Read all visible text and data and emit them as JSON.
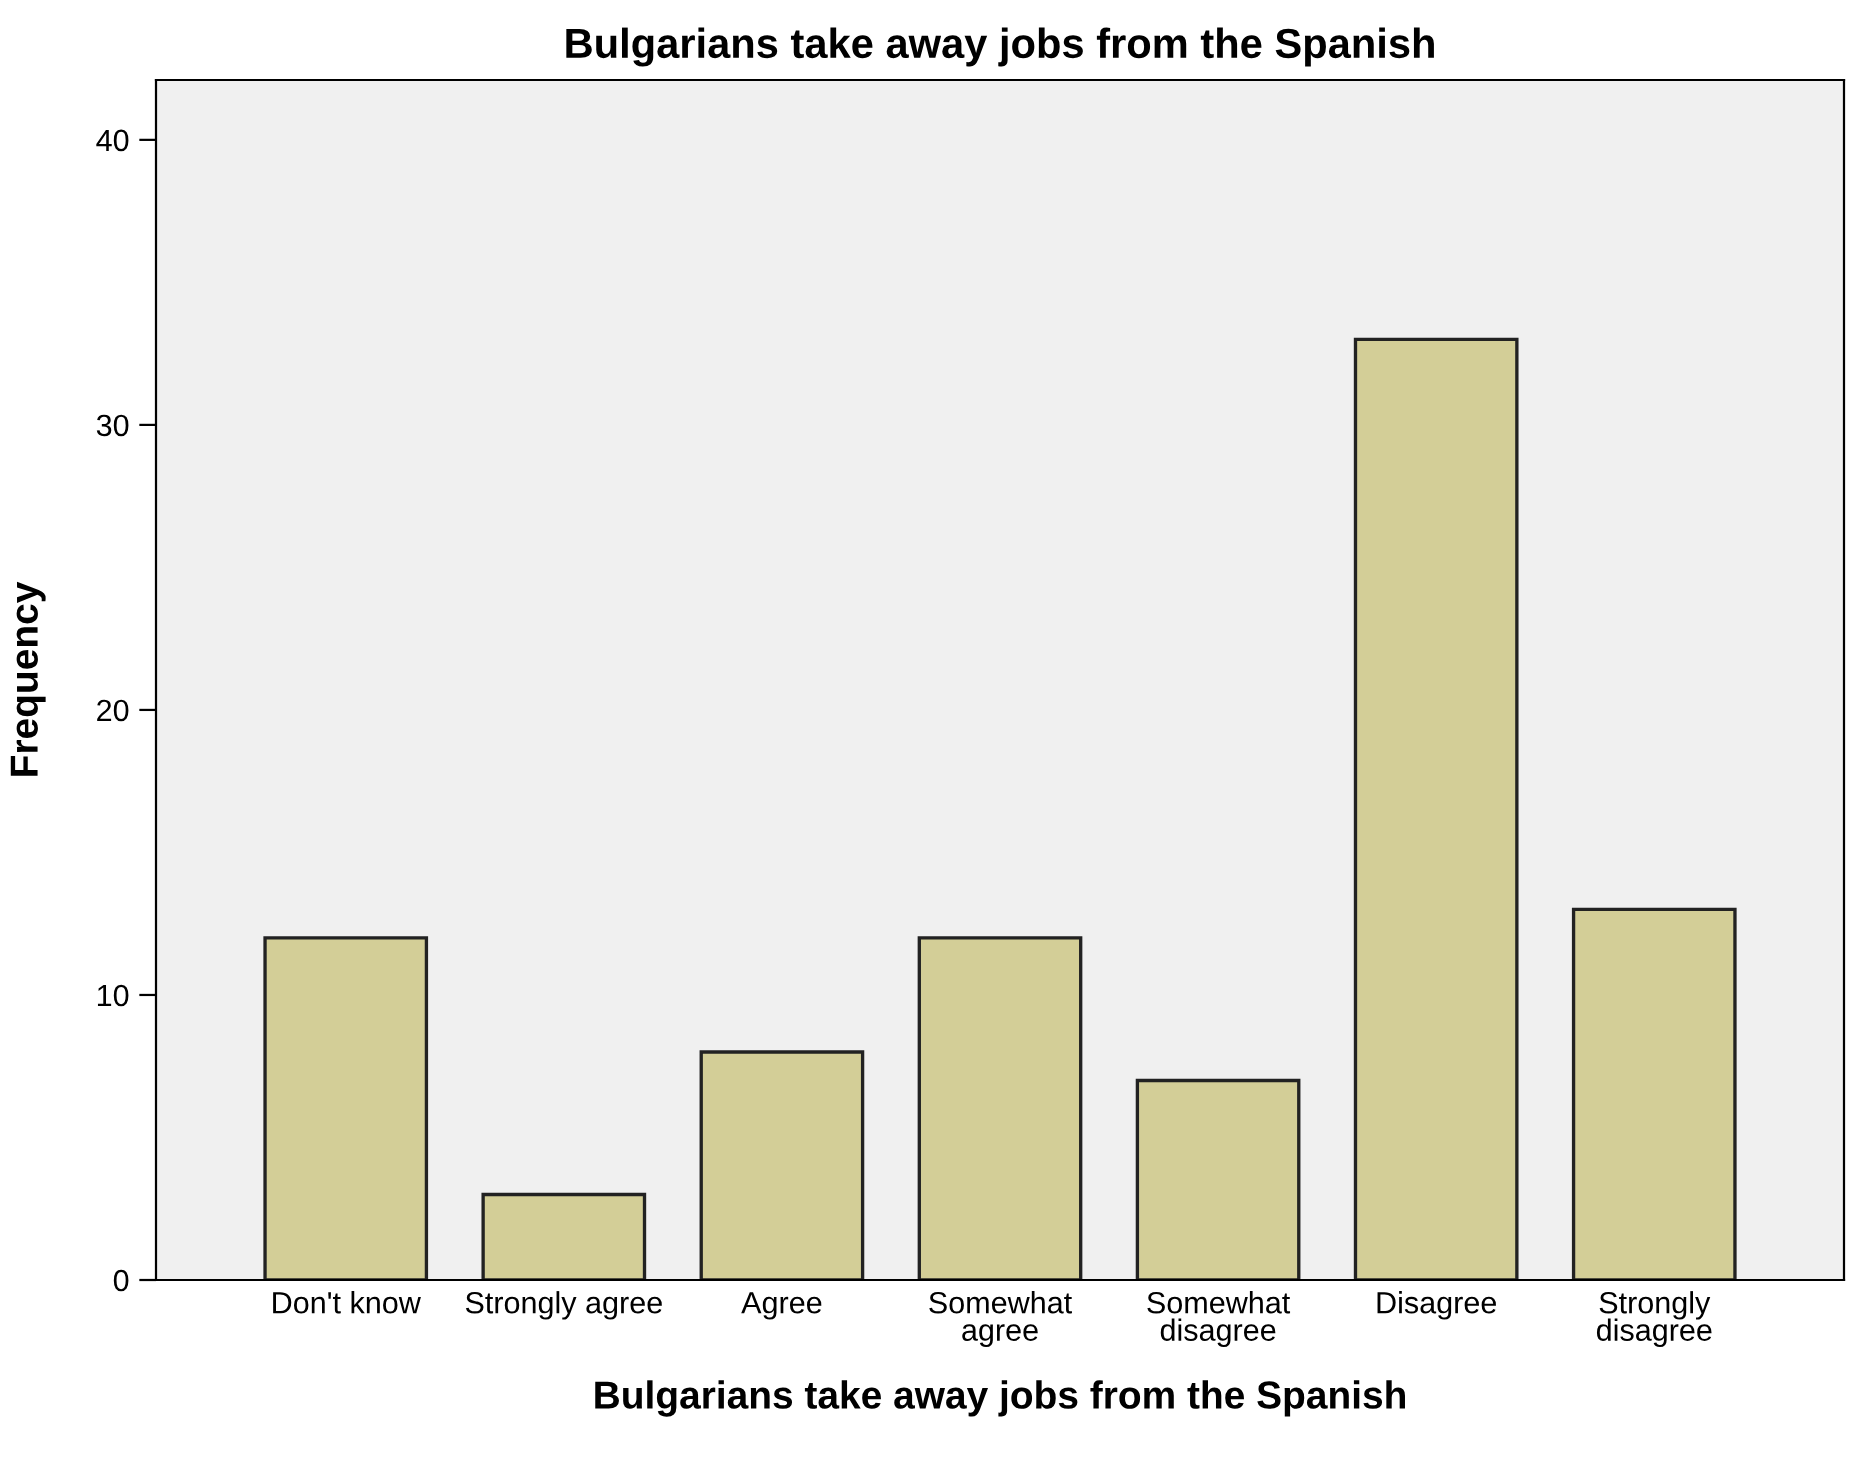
{
  "chart_data": {
    "type": "bar",
    "title": "Bulgarians take away jobs from the Spanish",
    "xlabel": "Bulgarians take away jobs from the Spanish",
    "ylabel": "Frequency",
    "categories": [
      "Don't know",
      "Strongly agree",
      "Agree",
      "Somewhat\nagree",
      "Somewhat\ndisagree",
      "Disagree",
      "Strongly\ndisagree"
    ],
    "values": [
      12,
      3,
      8,
      12,
      7,
      33,
      13
    ],
    "color": "#d3ce97",
    "ylim": [
      0,
      42.1
    ],
    "yticks": [
      0,
      10,
      20,
      30,
      40
    ],
    "grid": false,
    "legend": false
  }
}
